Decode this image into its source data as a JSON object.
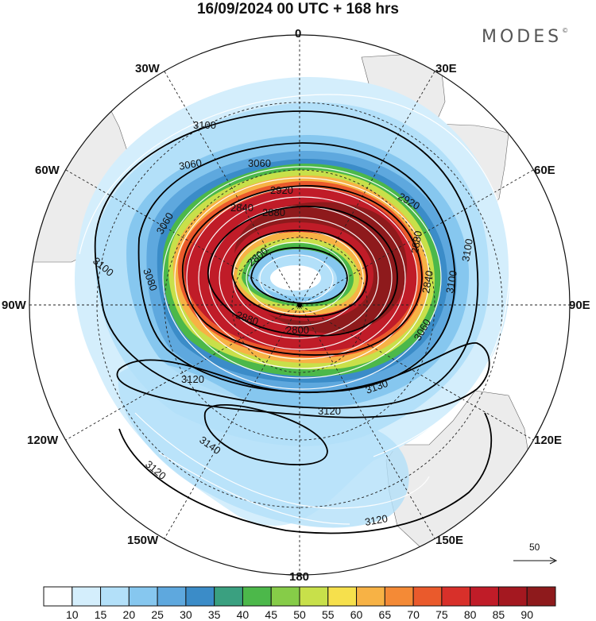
{
  "title": "16/09/2024  00 UTC  + 168 hrs",
  "brand": "MODES",
  "brand_mark": "©",
  "longitude_labels": {
    "north": "0",
    "e30": "30E",
    "e60": "60E",
    "east": "90E",
    "e120": "120E",
    "e150": "150E",
    "south": "180",
    "w150": "150W",
    "w120": "120W",
    "west": "90W",
    "w60": "60W",
    "w30": "30W"
  },
  "contour_labels": [
    "3100",
    "3060",
    "3060",
    "2920",
    "2880",
    "2840",
    "2800",
    "2880",
    "2800",
    "3100",
    "3080",
    "3060",
    "3100",
    "2840",
    "2880",
    "2920",
    "3060",
    "3100",
    "3120",
    "3140",
    "3120",
    "3120",
    "3120",
    "3130"
  ],
  "reference_vector_label": "50",
  "colorbar": {
    "colors": [
      "#ffffff",
      "#d4eefc",
      "#b3e0f9",
      "#86c7ef",
      "#5ea8de",
      "#3b8cc8",
      "#3aa080",
      "#4cb84a",
      "#86cc48",
      "#c8e04a",
      "#f6e04c",
      "#f7b245",
      "#f48a36",
      "#ea5a2c",
      "#d8302a",
      "#c01c28",
      "#a41820",
      "#8e1a1c"
    ],
    "labels": [
      "10",
      "15",
      "20",
      "25",
      "30",
      "35",
      "40",
      "45",
      "50",
      "55",
      "60",
      "65",
      "70",
      "75",
      "80",
      "85",
      "90"
    ]
  }
}
